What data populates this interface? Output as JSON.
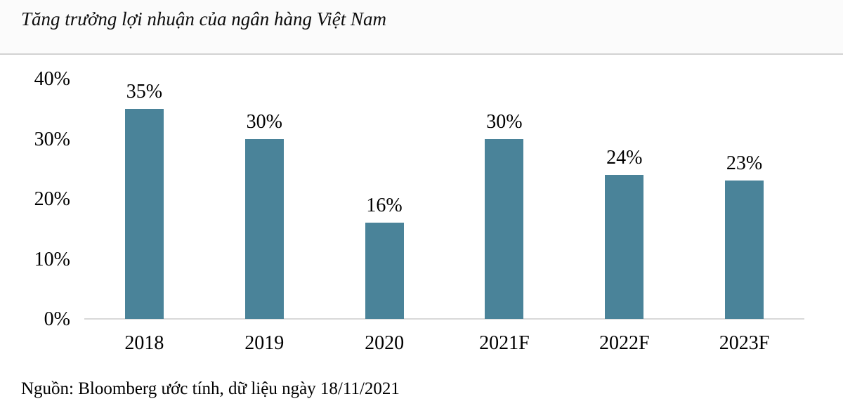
{
  "page": {
    "title": "Tăng trưởng lợi nhuận của ngân hàng Việt Nam",
    "source_note": "Nguồn: Bloomberg ước tính, dữ liệu ngày 18/11/2021"
  },
  "colors": {
    "bar": "#4A8399",
    "axis_line": "#D9D9D9",
    "divider": "#D2D2D2",
    "text": "#000000"
  },
  "chart_data": {
    "type": "bar",
    "title": "Tăng trưởng lợi nhuận của ngân hàng Việt Nam",
    "categories": [
      "2018",
      "2019",
      "2020",
      "2021F",
      "2022F",
      "2023F"
    ],
    "values": [
      35,
      30,
      16,
      30,
      24,
      23
    ],
    "data_labels": [
      "35%",
      "30%",
      "16%",
      "30%",
      "24%",
      "23%"
    ],
    "unit": "%",
    "xlabel": "",
    "ylabel": "",
    "ylim": [
      0,
      40
    ],
    "y_ticks": [
      "0%",
      "10%",
      "20%",
      "30%",
      "40%"
    ],
    "grid": false,
    "legend": false,
    "source": "Nguồn: Bloomberg ước tính, dữ liệu ngày 18/11/2021"
  }
}
